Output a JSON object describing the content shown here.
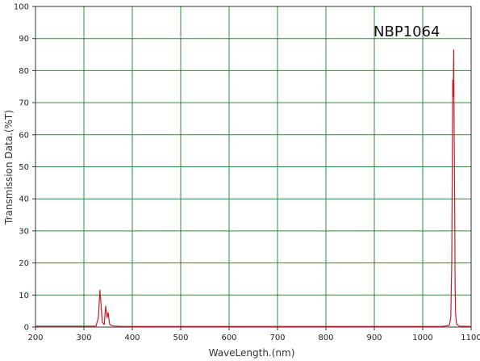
{
  "chart_data": {
    "type": "line",
    "title": "",
    "annotation": "NBP1064",
    "xlabel": "WaveLength.(nm)",
    "ylabel": "Transmission Data.(%T)",
    "xlim": [
      200,
      1100
    ],
    "ylim": [
      0,
      100
    ],
    "x_ticks": [
      200,
      300,
      400,
      500,
      600,
      700,
      800,
      900,
      1000,
      1100
    ],
    "y_ticks": [
      0,
      10,
      20,
      30,
      40,
      50,
      60,
      70,
      80,
      90,
      100
    ],
    "grid": true,
    "colors": {
      "grid": "#2e8b3a",
      "series": "#c0202a",
      "axis": "#333333"
    },
    "series": [
      {
        "x": [
          200,
          325,
          330,
          333,
          335,
          338,
          342,
          345,
          348,
          350,
          353,
          356,
          360,
          365,
          380,
          1040,
          1055,
          1058,
          1060,
          1061,
          1062,
          1063,
          1064,
          1065,
          1066,
          1067,
          1068,
          1070,
          1075,
          1100
        ],
        "y": [
          0.3,
          0.3,
          3,
          11.5,
          8,
          1.5,
          0.8,
          6.5,
          3,
          4.5,
          1,
          0.5,
          0.4,
          0.3,
          0.2,
          0.2,
          0.5,
          3,
          20,
          50,
          77,
          72,
          86.5,
          60,
          40,
          12,
          4,
          1,
          0.3,
          0.2
        ]
      }
    ]
  }
}
